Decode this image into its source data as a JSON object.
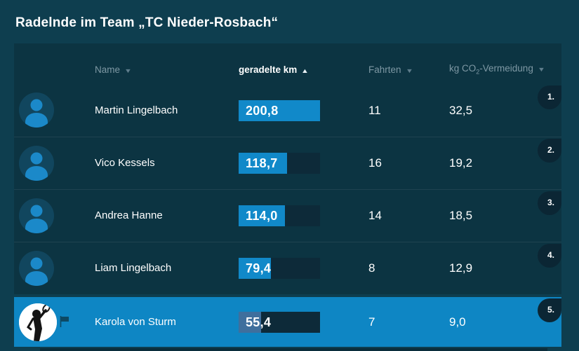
{
  "title": "Radelnde im Team „TC Nieder-Rosbach“",
  "table": {
    "columns": [
      {
        "id": "name",
        "label": "Name",
        "sort_glyph": "▼",
        "active": false
      },
      {
        "id": "km",
        "label": "geradelte km",
        "sort_glyph": "▲",
        "active": true
      },
      {
        "id": "trips",
        "label": "Fahrten",
        "sort_glyph": "▼",
        "active": false
      },
      {
        "id": "co2",
        "label_prefix": "kg CO",
        "label_sub": "2",
        "label_suffix": "-Vermeidung",
        "sort_glyph": "▼",
        "active": false
      }
    ],
    "rows": [
      {
        "rank": "1.",
        "name": "Martin Lingelbach",
        "km": "200,8",
        "km_pct": 100,
        "trips": "11",
        "co2": "32,5",
        "highlighted": false,
        "photo_avatar": false,
        "has_flag": false
      },
      {
        "rank": "2.",
        "name": "Vico Kessels",
        "km": "118,7",
        "km_pct": 59.1,
        "trips": "16",
        "co2": "19,2",
        "highlighted": false,
        "photo_avatar": false,
        "has_flag": false
      },
      {
        "rank": "3.",
        "name": "Andrea Hanne",
        "km": "114,0",
        "km_pct": 56.8,
        "trips": "14",
        "co2": "18,5",
        "highlighted": false,
        "photo_avatar": false,
        "has_flag": false
      },
      {
        "rank": "4.",
        "name": "Liam Lingelbach",
        "km": "79,4",
        "km_pct": 39.5,
        "trips": "8",
        "co2": "12,9",
        "highlighted": false,
        "photo_avatar": false,
        "has_flag": false
      },
      {
        "rank": "5.",
        "name": "Karola von Sturm",
        "km": "55,4",
        "km_pct": 27.6,
        "trips": "7",
        "co2": "9,0",
        "highlighted": true,
        "photo_avatar": true,
        "has_flag": true
      }
    ]
  },
  "icons": {
    "default_avatar": "person-icon",
    "highlighted_avatar": "athlete-photo",
    "flag": "flag-icon"
  },
  "colors": {
    "page_bg": "#0e3e4f",
    "table_bg": "#0c3442",
    "bar_track": "#0d2a39",
    "accent_blue": "#1189c9",
    "highlight_row": "#0e86c4",
    "highlight_bar_fill": "#3f6f9d",
    "badge_bg": "#0b2634",
    "header_text": "#7e98a4"
  }
}
